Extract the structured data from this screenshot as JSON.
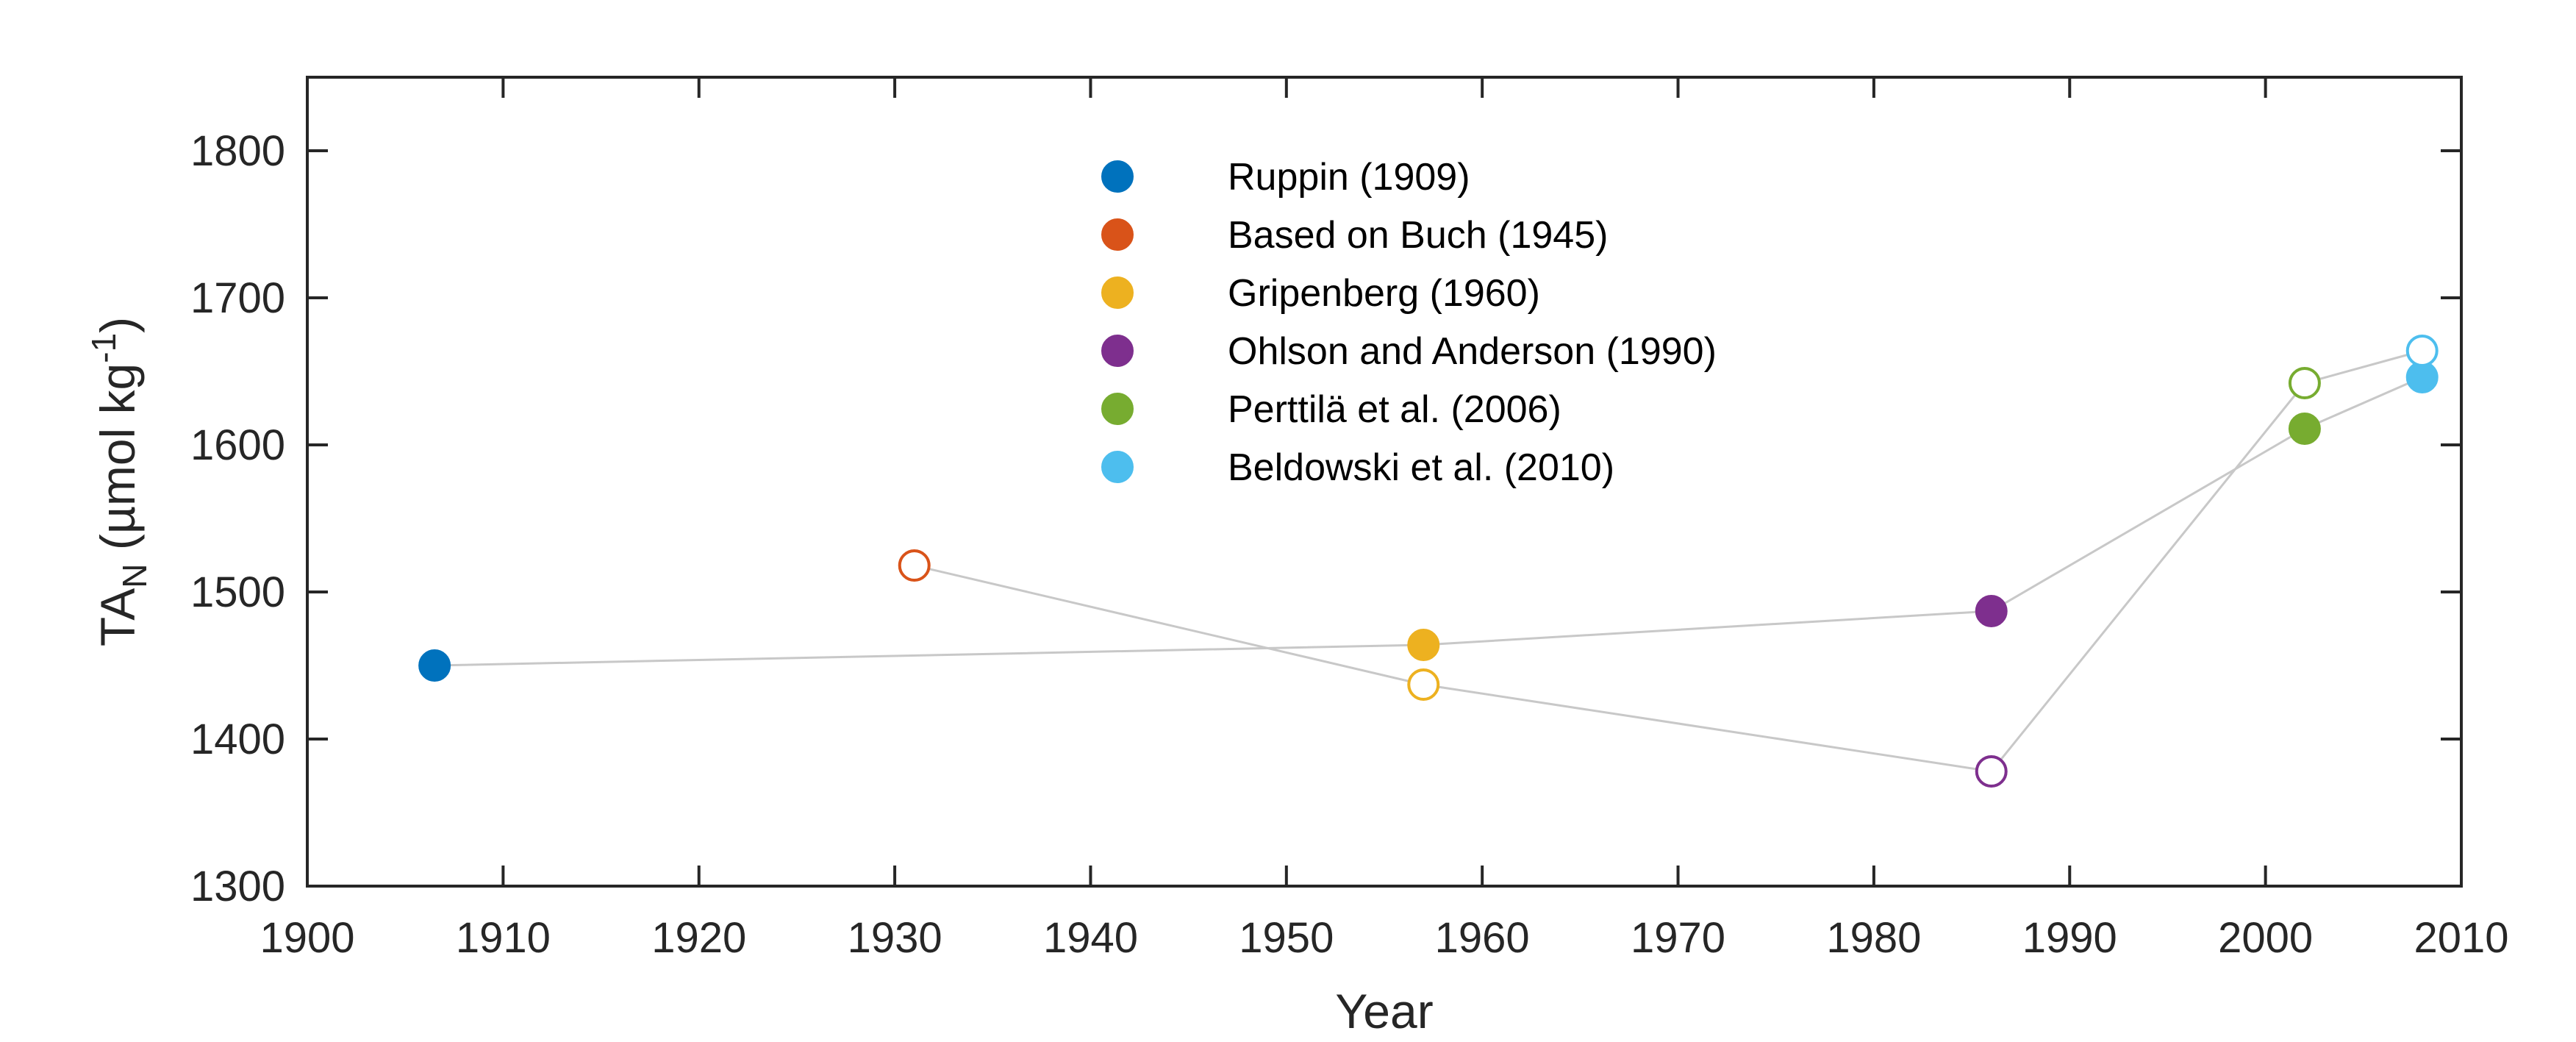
{
  "chart_data": {
    "type": "scatter",
    "xlabel": "Year",
    "ylabel": {
      "main": "TA",
      "sub": "N",
      "unit_pre": " (µmol kg",
      "sup": "-1",
      "unit_post": ")"
    },
    "xlim": [
      1900,
      2010
    ],
    "ylim": [
      1300,
      1850
    ],
    "x_ticks": [
      1900,
      1910,
      1920,
      1930,
      1940,
      1950,
      1960,
      1970,
      1980,
      1990,
      2000,
      2010
    ],
    "y_ticks": [
      1300,
      1400,
      1500,
      1600,
      1700,
      1800
    ],
    "grid": false,
    "legend_position": "top-center",
    "series": [
      {
        "name": "Ruppin (1909)",
        "color": "#0072BD",
        "points": [
          {
            "x": 1906.5,
            "y": 1450,
            "filled": true
          }
        ]
      },
      {
        "name": "Based on Buch (1945)",
        "color": "#D95319",
        "points": [
          {
            "x": 1931,
            "y": 1518,
            "filled": false
          }
        ]
      },
      {
        "name": "Gripenberg (1960)",
        "color": "#EDB120",
        "points": [
          {
            "x": 1957,
            "y": 1464,
            "filled": true
          },
          {
            "x": 1957,
            "y": 1437,
            "filled": false
          }
        ]
      },
      {
        "name": "Ohlson and Anderson (1990)",
        "color": "#7E2F8E",
        "points": [
          {
            "x": 1986,
            "y": 1487,
            "filled": true
          },
          {
            "x": 1986,
            "y": 1378,
            "filled": false
          }
        ]
      },
      {
        "name": "Perttilä et al. (2006)",
        "color": "#77AC30",
        "points": [
          {
            "x": 2002,
            "y": 1611,
            "filled": true
          },
          {
            "x": 2002,
            "y": 1642,
            "filled": false
          }
        ]
      },
      {
        "name": "Beldowski et al. (2010)",
        "color": "#4DBEEE",
        "points": [
          {
            "x": 2008,
            "y": 1646,
            "filled": true
          },
          {
            "x": 2008,
            "y": 1664,
            "filled": false
          }
        ]
      }
    ],
    "connector_lines": [
      {
        "color": "#C8C8C8",
        "points": [
          [
            1906.5,
            1450
          ],
          [
            1957,
            1464
          ],
          [
            1986,
            1487
          ],
          [
            2002,
            1611
          ],
          [
            2008,
            1646
          ]
        ]
      },
      {
        "color": "#C8C8C8",
        "points": [
          [
            1931,
            1518
          ],
          [
            1957,
            1437
          ],
          [
            1986,
            1378
          ],
          [
            2002,
            1642
          ],
          [
            2008,
            1664
          ]
        ]
      }
    ]
  }
}
